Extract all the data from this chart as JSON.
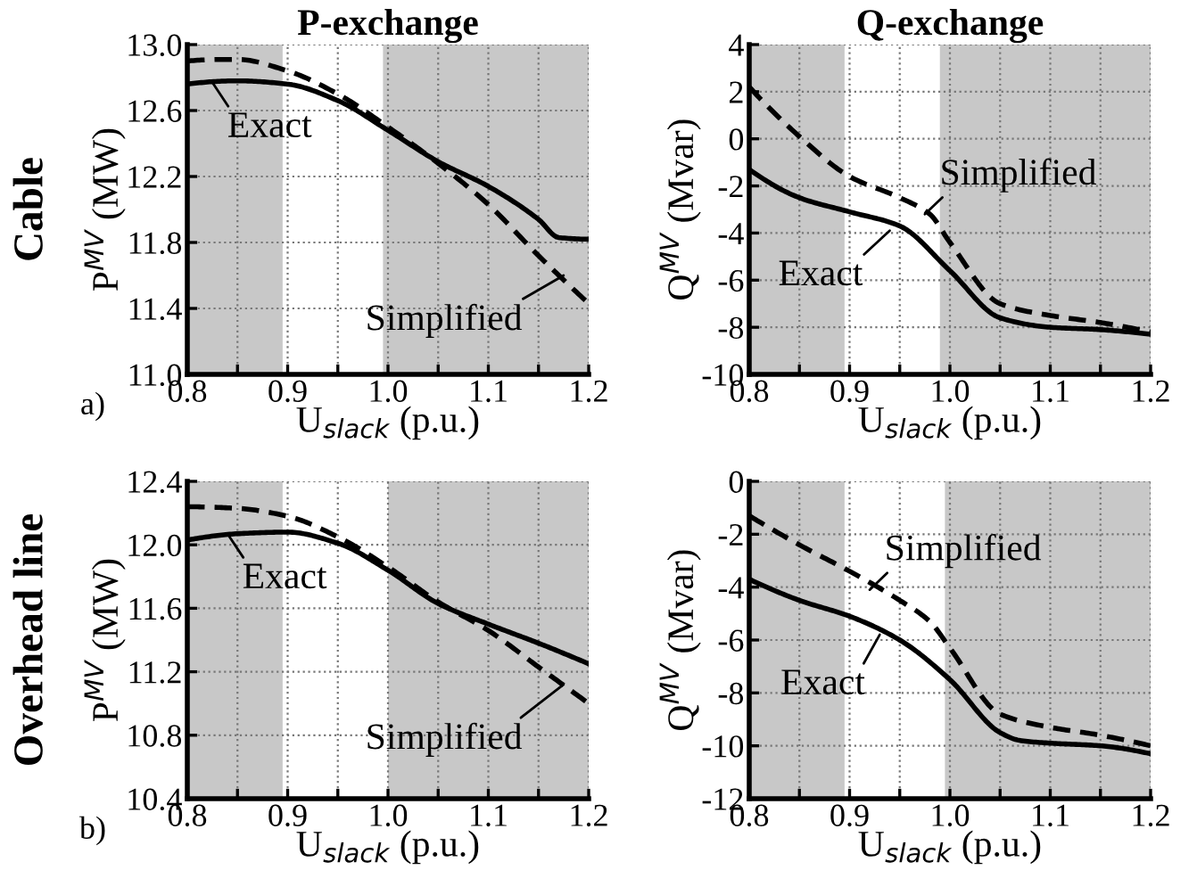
{
  "chart_data": [
    {
      "type": "line",
      "title": "P-exchange",
      "xlabel": "U$_{slack}$ (p.u.)",
      "ylabel": "P$^{MV}$ (MW)",
      "xlim": [
        0.8,
        1.2
      ],
      "xticks": [
        0.8,
        {
          "value": 0.85,
          "label": null
        },
        0.9,
        {
          "value": 0.95,
          "label": null
        },
        {
          "value": 1.0,
          "label": "1.0"
        },
        {
          "value": 1.05,
          "label": null
        },
        1.1,
        {
          "value": 1.15,
          "label": null
        },
        1.2
      ],
      "ylim": [
        11.0,
        13.0
      ],
      "yticks": [
        {
          "value": 11.0,
          "label": "11.0"
        },
        11.4,
        11.8,
        12.2,
        12.6,
        {
          "value": 13.0,
          "label": "13.0"
        }
      ],
      "grid": true,
      "legend": false,
      "bands": [
        {
          "axis": "x",
          "from": 0.8,
          "to": 0.895,
          "color": "#c8c8c8"
        },
        {
          "axis": "x",
          "from": 0.995,
          "to": 1.2,
          "color": "#c8c8c8"
        }
      ],
      "series": [
        {
          "color": "#000000",
          "line_style": "solid",
          "x": [
            0.8,
            0.85,
            0.9,
            0.95,
            1.0,
            1.05,
            1.1,
            1.15,
            1.17,
            1.2
          ],
          "values": [
            12.76,
            12.78,
            12.76,
            12.66,
            12.48,
            12.29,
            12.14,
            11.94,
            11.83,
            11.82
          ]
        },
        {
          "color": "#000000",
          "line_style": "dashed",
          "x": [
            0.8,
            0.85,
            0.9,
            0.95,
            1.0,
            1.05,
            1.1,
            1.15,
            1.2
          ],
          "values": [
            12.9,
            12.91,
            12.84,
            12.7,
            12.5,
            12.28,
            12.03,
            11.72,
            11.43
          ]
        }
      ],
      "annotations": [
        {
          "text": "Exact",
          "x": 0.825,
          "y": 12.77
        },
        {
          "text": "Simplified",
          "x": 1.175,
          "y": 11.6
        },
        "Cable",
        "a)"
      ]
    },
    {
      "type": "line",
      "title": "Q-exchange",
      "xlabel": "U$_{slack}$ (p.u.)",
      "ylabel": "Q$^{MV}$ (Mvar)",
      "xlim": [
        0.8,
        1.2
      ],
      "xticks": [
        0.8,
        {
          "value": 0.85,
          "label": null
        },
        0.9,
        {
          "value": 0.95,
          "label": null
        },
        {
          "value": 1.0,
          "label": "1.0"
        },
        {
          "value": 1.05,
          "label": null
        },
        1.1,
        {
          "value": 1.15,
          "label": null
        },
        1.2
      ],
      "ylim": [
        -10,
        4
      ],
      "yticks": [
        -10,
        -8,
        -6,
        -4,
        -2,
        0,
        2,
        4
      ],
      "grid": true,
      "legend": false,
      "bands": [
        {
          "axis": "x",
          "from": 0.8,
          "to": 0.895,
          "color": "#c8c8c8"
        },
        {
          "axis": "x",
          "from": 0.99,
          "to": 1.2,
          "color": "#c8c8c8"
        }
      ],
      "series": [
        {
          "color": "#000000",
          "line_style": "solid",
          "x": [
            0.8,
            0.85,
            0.9,
            0.95,
            1.0,
            1.05,
            1.1,
            1.15,
            1.2
          ],
          "values": [
            -1.3,
            -2.5,
            -3.1,
            -3.7,
            -5.6,
            -7.6,
            -8.0,
            -8.1,
            -8.3
          ]
        },
        {
          "color": "#000000",
          "line_style": "dashed",
          "x": [
            0.8,
            0.85,
            0.9,
            0.95,
            0.98,
            1.0,
            1.05,
            1.1,
            1.15,
            1.2
          ],
          "values": [
            2.2,
            0.1,
            -1.6,
            -2.5,
            -3.2,
            -4.4,
            -7.0,
            -7.5,
            -7.8,
            -8.2
          ]
        }
      ],
      "annotations": [
        {
          "text": "Simplified",
          "x": 0.975,
          "y": -3.2
        },
        {
          "text": "Exact",
          "x": 0.94,
          "y": -3.9
        }
      ]
    },
    {
      "type": "line",
      "xlabel": "U$_{slack}$ (p.u.)",
      "ylabel": "P$^{MV}$ (MW)",
      "xlim": [
        0.8,
        1.2
      ],
      "xticks": [
        0.8,
        {
          "value": 0.85,
          "label": null
        },
        0.9,
        {
          "value": 0.95,
          "label": null
        },
        {
          "value": 1.0,
          "label": "1.0"
        },
        {
          "value": 1.05,
          "label": null
        },
        1.1,
        {
          "value": 1.15,
          "label": null
        },
        1.2
      ],
      "ylim": [
        10.4,
        12.4
      ],
      "yticks": [
        10.4,
        10.8,
        11.2,
        11.6,
        {
          "value": 12.0,
          "label": "12.0"
        },
        12.4
      ],
      "grid": true,
      "legend": false,
      "bands": [
        {
          "axis": "x",
          "from": 0.8,
          "to": 0.895,
          "color": "#c8c8c8"
        },
        {
          "axis": "x",
          "from": 1.0,
          "to": 1.2,
          "color": "#c8c8c8"
        }
      ],
      "series": [
        {
          "color": "#000000",
          "line_style": "solid",
          "x": [
            0.8,
            0.85,
            0.9,
            0.95,
            1.0,
            1.05,
            1.1,
            1.15,
            1.2
          ],
          "values": [
            12.03,
            12.07,
            12.08,
            12.01,
            11.84,
            11.63,
            11.5,
            11.38,
            11.25
          ]
        },
        {
          "color": "#000000",
          "line_style": "dashed",
          "x": [
            0.8,
            0.85,
            0.9,
            0.95,
            1.0,
            1.05,
            1.1,
            1.15,
            1.2
          ],
          "values": [
            12.24,
            12.23,
            12.18,
            12.05,
            11.86,
            11.64,
            11.46,
            11.23,
            11.0
          ]
        }
      ],
      "annotations": [
        {
          "text": "Exact",
          "x": 0.84,
          "y": 12.07
        },
        {
          "text": "Simplified",
          "x": 1.175,
          "y": 11.12
        },
        "Overhead line",
        "b)"
      ]
    },
    {
      "type": "line",
      "xlabel": "U$_{slack}$ (p.u.)",
      "ylabel": "Q$^{MV}$ (Mvar)",
      "xlim": [
        0.8,
        1.2
      ],
      "xticks": [
        0.8,
        {
          "value": 0.85,
          "label": null
        },
        0.9,
        {
          "value": 0.95,
          "label": null
        },
        {
          "value": 1.0,
          "label": "1.0"
        },
        {
          "value": 1.05,
          "label": null
        },
        1.1,
        {
          "value": 1.15,
          "label": null
        },
        1.2
      ],
      "ylim": [
        -12,
        0
      ],
      "yticks": [
        -12,
        -10,
        -8,
        -6,
        -4,
        -2,
        0
      ],
      "grid": true,
      "legend": false,
      "bands": [
        {
          "axis": "x",
          "from": 0.8,
          "to": 0.895,
          "color": "#c8c8c8"
        },
        {
          "axis": "x",
          "from": 0.995,
          "to": 1.2,
          "color": "#c8c8c8"
        }
      ],
      "series": [
        {
          "color": "#000000",
          "line_style": "solid",
          "x": [
            0.8,
            0.85,
            0.9,
            0.95,
            1.0,
            1.05,
            1.07,
            1.1,
            1.15,
            1.2
          ],
          "values": [
            -3.7,
            -4.5,
            -5.1,
            -6.0,
            -7.5,
            -9.5,
            -9.8,
            -9.9,
            -10.0,
            -10.3
          ]
        },
        {
          "color": "#000000",
          "line_style": "dashed",
          "x": [
            0.8,
            0.85,
            0.9,
            0.95,
            0.98,
            1.0,
            1.05,
            1.1,
            1.15,
            1.2
          ],
          "values": [
            -1.3,
            -2.4,
            -3.4,
            -4.5,
            -5.3,
            -6.3,
            -8.8,
            -9.3,
            -9.6,
            -10.0
          ]
        }
      ],
      "annotations": [
        {
          "text": "Simplified",
          "x": 0.92,
          "y": -4.1
        },
        {
          "text": "Exact",
          "x": 0.93,
          "y": -5.8
        }
      ]
    }
  ]
}
